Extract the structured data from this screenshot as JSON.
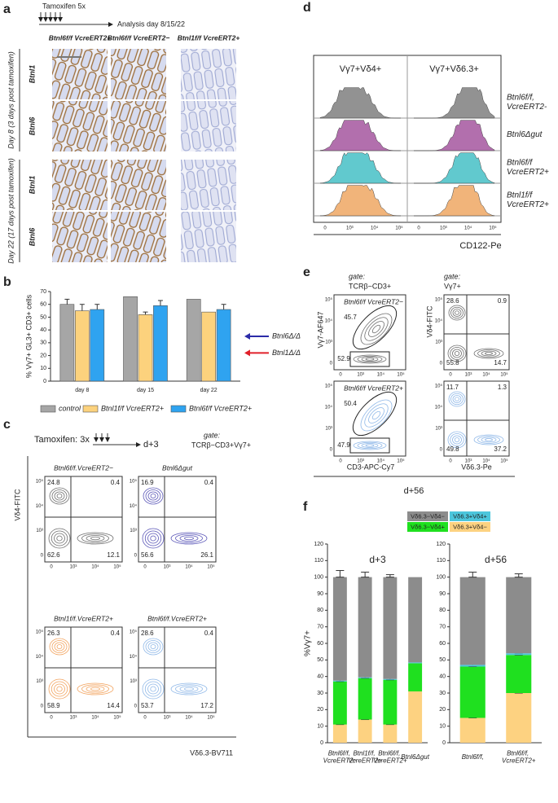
{
  "figure": {
    "flow_ticks": [
      "0",
      "10³",
      "10⁴",
      "10⁵"
    ],
    "a": {
      "label": "a",
      "protocol": "Tamoxifen 5x",
      "analysis": "Analysis day 8/15/22",
      "columns": [
        "Btnl6f/f VcreERT2+",
        "Btnl6f/f VcreERT2−",
        "Btnl1f/f VcreERT2+"
      ],
      "groups": [
        "Day 8 (3 days post tamoxifen)",
        "Day 22 (17 days post tamoxifen)"
      ],
      "rows": [
        "Btnl1",
        "Btnl6",
        "Btnl1",
        "Btnl6"
      ]
    },
    "b": {
      "label": "b"
    },
    "c": {
      "label": "c",
      "protocol": "Tamoxifen: 3x",
      "timepoint": "d+3",
      "gate_title": "gate:",
      "gate": "TCRβ−CD3+Vγ7+",
      "y_label": "Vδ4-FITC",
      "x_label": "Vδ6.3-BV711",
      "plots": [
        {
          "title": "Btnl6f/f.VcreERT2−",
          "color": "#6e6e6e",
          "quadrants": [
            24.8,
            0.4,
            62.6,
            12.1
          ]
        },
        {
          "title": "Btnl6Δgut",
          "color": "#5b57b8",
          "quadrants": [
            16.9,
            0.4,
            56.6,
            26.1
          ]
        },
        {
          "title": "Btnl1f/f.VcreERT2+",
          "color": "#f2a35e",
          "quadrants": [
            26.3,
            0.4,
            58.9,
            14.4
          ]
        },
        {
          "title": "Btnl6f/f.VcreERT2+",
          "color": "#8fb8e8",
          "quadrants": [
            28.6,
            0.4,
            53.7,
            17.2
          ]
        }
      ]
    },
    "d": {
      "label": "d",
      "columns": [
        "Vγ7+Vδ4+",
        "Vγ7+Vδ6.3+"
      ],
      "rows": [
        "Btnl6f/f, VcreERT2-",
        "Btnl6Δgut",
        "Btnl6f/f VcreERT2+",
        "Btnl1f/f VcreERT2+"
      ],
      "colors": [
        "#7f7f7f",
        "#a5569f",
        "#45c0c6",
        "#eea763"
      ],
      "x_label": "CD122-Pe"
    },
    "e": {
      "label": "e",
      "gate_title": "gate:",
      "gates": [
        "TCRβ−CD3+",
        "Vγ7+"
      ],
      "y_labels": [
        "Vγ7-AF647",
        "Vδ4-FITC"
      ],
      "x_labels": [
        "CD3-APC-Cy7",
        "Vδ6.3-Pe"
      ],
      "timepoint": "d+56",
      "plots": [
        {
          "title": "Btnl6f/f VcreERT2−",
          "color": "#6e6e6e",
          "gates": [
            45.7,
            52.9
          ],
          "quadrants": [
            28.6,
            0.9,
            55.8,
            14.7
          ]
        },
        {
          "title": "Btnl6f/f VcreERT2+",
          "color": "#8fb8e8",
          "gates": [
            50.4,
            47.9
          ],
          "quadrants": [
            11.7,
            1.3,
            49.8,
            37.2
          ]
        }
      ]
    },
    "f": {
      "label": "f",
      "y_label": "%Vγ7+"
    }
  },
  "chart_data": [
    {
      "type": "bar",
      "y_label": "% Vγ7+ GL3+ CD3+ cells",
      "categories": [
        "day 8",
        "day 15",
        "day 22"
      ],
      "series": [
        {
          "name": "control",
          "color": "#a6a6a6",
          "values": [
            60,
            66,
            64
          ],
          "errors": [
            4,
            null,
            null
          ]
        },
        {
          "name": "Btnl1f/f VcreERT2+",
          "color": "#fcd27d",
          "values": [
            55,
            52,
            54
          ],
          "errors": [
            5,
            2,
            null
          ]
        },
        {
          "name": "Btnl6f/f VcreERT2+",
          "color": "#2fa3f0",
          "values": [
            56,
            59,
            56
          ],
          "errors": [
            4,
            4,
            4
          ]
        }
      ],
      "ylim": [
        0,
        70
      ],
      "yticks": [
        0,
        10,
        20,
        30,
        40,
        50,
        60,
        70
      ],
      "legend": "bottom",
      "annotations": [
        {
          "text": "Btnl6Δ/Δ",
          "y": 35,
          "color": "#2b2ba8"
        },
        {
          "text": "Btnl1Δ/Δ",
          "y": 22,
          "color": "#e0202a"
        }
      ]
    },
    {
      "type": "stacked_bar",
      "title": "d+3",
      "categories": [
        "Btnl6f/f, VcreERT2−",
        "Btnl1f/f, VcreERT2+",
        "Btnl6f/f, VcreERT2+",
        "Btnl6Δgut"
      ],
      "series": [
        {
          "name": "Vδ6.3+Vδ4−",
          "color": "#fdd281",
          "values": [
            11,
            14,
            11,
            31
          ],
          "errors": [
            1,
            1,
            2,
            null
          ]
        },
        {
          "name": "Vδ6.3−Vδ4+",
          "color": "#1fe01f",
          "values": [
            26,
            25,
            27,
            17
          ],
          "errors": [
            2,
            2,
            1,
            null
          ]
        },
        {
          "name": "Vδ6.3+Vδ4+",
          "color": "#4cc6dc",
          "values": [
            0.5,
            0.5,
            0.5,
            0.5
          ]
        },
        {
          "name": "Vδ6.3−Vδ4−",
          "color": "#8c8c8c",
          "values": [
            62.5,
            60.5,
            61.5,
            51.5
          ],
          "errors": [
            4,
            3,
            1.5,
            null
          ]
        }
      ],
      "ylim": [
        0,
        120
      ],
      "yticks": [
        0,
        10,
        20,
        30,
        40,
        50,
        60,
        70,
        80,
        90,
        100,
        110,
        120
      ]
    },
    {
      "type": "stacked_bar",
      "title": "d+56",
      "categories": [
        "Btnl6f/f,",
        "Btnl6f/f, VcreERT2+"
      ],
      "series": [
        {
          "color": "#fdd281",
          "values": [
            15,
            30
          ],
          "errors": [
            1,
            2
          ]
        },
        {
          "color": "#1fe01f",
          "values": [
            31,
            23
          ],
          "errors": [
            3,
            1
          ]
        },
        {
          "color": "#4cc6dc",
          "values": [
            1,
            1
          ]
        },
        {
          "color": "#8c8c8c",
          "values": [
            53,
            46
          ],
          "errors": [
            3,
            2
          ]
        }
      ],
      "ylim": [
        0,
        120
      ],
      "yticks": [
        0,
        10,
        20,
        30,
        40,
        50,
        60,
        70,
        80,
        90,
        100,
        110,
        120
      ]
    }
  ]
}
